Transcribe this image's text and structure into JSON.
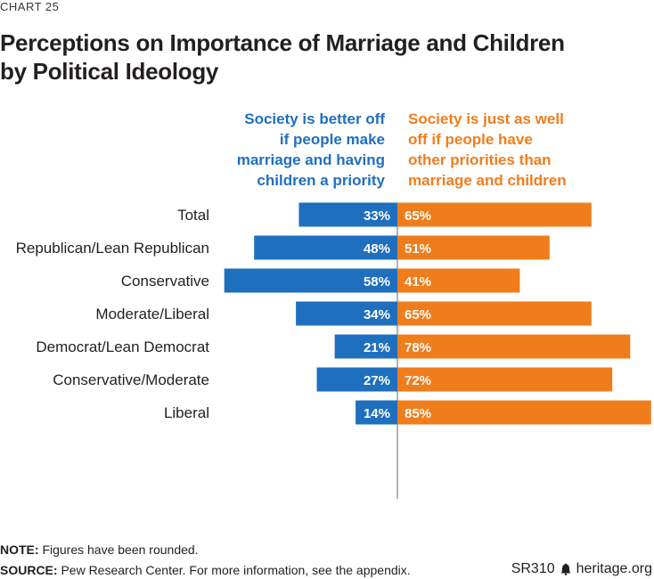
{
  "header": {
    "kicker": "CHART 25",
    "title_line1": "Perceptions on Importance of Marriage and Children",
    "title_line2": "by Political Ideology"
  },
  "columns": {
    "left_line1": "Society is better off",
    "left_line2": "if people make",
    "left_line3": "marriage and having",
    "left_line4": "children a priority",
    "right_line1": "Society is just as well",
    "right_line2": "off if people have",
    "right_line3": "other priorities than",
    "right_line4": "marriage and children"
  },
  "colors": {
    "left": "#1f6fbf",
    "right": "#f07d1c",
    "axis": "#9a9a9a"
  },
  "chart_data": {
    "type": "bar",
    "orientation": "horizontal-diverging",
    "categories": [
      "Total",
      "Republican/Lean Republican",
      "Conservative",
      "Moderate/Liberal",
      "Democrat/Lean Democrat",
      "Conservative/Moderate",
      "Liberal"
    ],
    "groups": [
      [
        "Total"
      ],
      [
        "Republican/Lean Republican",
        "Conservative",
        "Moderate/Liberal"
      ],
      [
        "Democrat/Lean Democrat",
        "Conservative/Moderate",
        "Liberal"
      ]
    ],
    "series": [
      {
        "name": "Society is better off if people make marriage and having children a priority",
        "values": [
          33,
          48,
          58,
          34,
          21,
          27,
          14
        ]
      },
      {
        "name": "Society is just as well off if people have other priorities than marriage and children",
        "values": [
          65,
          51,
          41,
          65,
          78,
          72,
          85
        ]
      }
    ],
    "unit": "%"
  },
  "footer": {
    "note_label": "NOTE:",
    "note_text": " Figures have been rounded.",
    "source_label": "SOURCE:",
    "source_text": " Pew Research Center. For more information, see the appendix.",
    "report_id": "SR310",
    "site": "heritage.org"
  }
}
